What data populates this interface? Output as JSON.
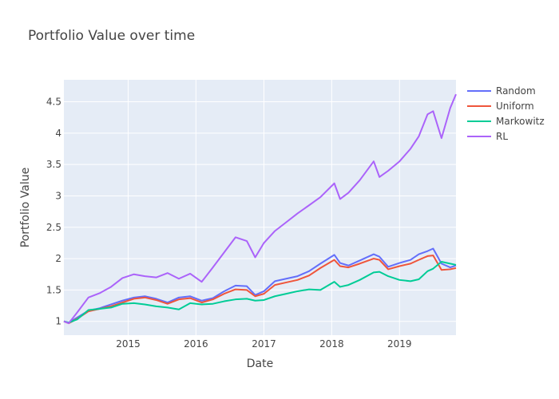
{
  "chart_data": {
    "type": "line",
    "title": "Portfolio Value over time",
    "xlabel": "Date",
    "ylabel": "Portfolio Value",
    "xlim": [
      "2014-01-20",
      "2019-11-01"
    ],
    "ylim": [
      0.78,
      4.85
    ],
    "x_ticks": [
      "2015",
      "2016",
      "2017",
      "2018",
      "2019"
    ],
    "y_ticks": [
      "1",
      "1.5",
      "2",
      "2.5",
      "3",
      "3.5",
      "4",
      "4.5"
    ],
    "grid": true,
    "legend_position": "top-right",
    "series": [
      {
        "name": "Random",
        "color": "#636efa",
        "points": [
          [
            "2014-01-20",
            1.0
          ],
          [
            "2014-02-15",
            0.98
          ],
          [
            "2014-04-01",
            1.06
          ],
          [
            "2014-06-01",
            1.17
          ],
          [
            "2014-08-01",
            1.21
          ],
          [
            "2014-10-01",
            1.27
          ],
          [
            "2014-12-01",
            1.33
          ],
          [
            "2015-02-01",
            1.38
          ],
          [
            "2015-04-01",
            1.4
          ],
          [
            "2015-06-01",
            1.36
          ],
          [
            "2015-08-01",
            1.3
          ],
          [
            "2015-10-01",
            1.38
          ],
          [
            "2015-12-01",
            1.4
          ],
          [
            "2016-02-01",
            1.33
          ],
          [
            "2016-04-01",
            1.37
          ],
          [
            "2016-06-01",
            1.48
          ],
          [
            "2016-08-01",
            1.57
          ],
          [
            "2016-10-01",
            1.56
          ],
          [
            "2016-11-15",
            1.42
          ],
          [
            "2017-01-01",
            1.48
          ],
          [
            "2017-03-01",
            1.64
          ],
          [
            "2017-05-01",
            1.68
          ],
          [
            "2017-07-01",
            1.72
          ],
          [
            "2017-09-01",
            1.8
          ],
          [
            "2017-11-01",
            1.92
          ],
          [
            "2018-01-15",
            2.06
          ],
          [
            "2018-02-15",
            1.93
          ],
          [
            "2018-04-01",
            1.89
          ],
          [
            "2018-06-01",
            1.97
          ],
          [
            "2018-08-15",
            2.07
          ],
          [
            "2018-09-15",
            2.03
          ],
          [
            "2018-11-01",
            1.87
          ],
          [
            "2019-01-01",
            1.93
          ],
          [
            "2019-03-01",
            1.98
          ],
          [
            "2019-04-15",
            2.07
          ],
          [
            "2019-06-01",
            2.12
          ],
          [
            "2019-07-01",
            2.16
          ],
          [
            "2019-08-15",
            1.92
          ],
          [
            "2019-10-01",
            1.86
          ],
          [
            "2019-11-01",
            1.89
          ]
        ]
      },
      {
        "name": "Uniform",
        "color": "#ef553b",
        "points": [
          [
            "2014-01-20",
            1.0
          ],
          [
            "2014-02-15",
            0.97
          ],
          [
            "2014-04-01",
            1.04
          ],
          [
            "2014-06-01",
            1.16
          ],
          [
            "2014-08-01",
            1.2
          ],
          [
            "2014-10-01",
            1.24
          ],
          [
            "2014-12-01",
            1.3
          ],
          [
            "2015-02-01",
            1.36
          ],
          [
            "2015-04-01",
            1.38
          ],
          [
            "2015-06-01",
            1.34
          ],
          [
            "2015-08-01",
            1.28
          ],
          [
            "2015-10-01",
            1.35
          ],
          [
            "2015-12-01",
            1.37
          ],
          [
            "2016-02-01",
            1.3
          ],
          [
            "2016-04-01",
            1.35
          ],
          [
            "2016-06-01",
            1.44
          ],
          [
            "2016-08-01",
            1.51
          ],
          [
            "2016-10-01",
            1.5
          ],
          [
            "2016-11-15",
            1.4
          ],
          [
            "2017-01-01",
            1.44
          ],
          [
            "2017-03-01",
            1.58
          ],
          [
            "2017-05-01",
            1.62
          ],
          [
            "2017-07-01",
            1.66
          ],
          [
            "2017-09-01",
            1.73
          ],
          [
            "2017-11-01",
            1.85
          ],
          [
            "2018-01-15",
            1.98
          ],
          [
            "2018-02-15",
            1.88
          ],
          [
            "2018-04-01",
            1.86
          ],
          [
            "2018-06-01",
            1.92
          ],
          [
            "2018-08-15",
            2.0
          ],
          [
            "2018-09-15",
            1.98
          ],
          [
            "2018-11-01",
            1.83
          ],
          [
            "2019-01-01",
            1.88
          ],
          [
            "2019-03-01",
            1.92
          ],
          [
            "2019-04-15",
            1.98
          ],
          [
            "2019-06-01",
            2.04
          ],
          [
            "2019-07-01",
            2.05
          ],
          [
            "2019-08-15",
            1.82
          ],
          [
            "2019-10-01",
            1.83
          ],
          [
            "2019-11-01",
            1.85
          ]
        ]
      },
      {
        "name": "Markowitz",
        "color": "#00cc96",
        "points": [
          [
            "2014-01-20",
            1.0
          ],
          [
            "2014-02-15",
            0.98
          ],
          [
            "2014-04-01",
            1.03
          ],
          [
            "2014-06-01",
            1.18
          ],
          [
            "2014-08-01",
            1.2
          ],
          [
            "2014-10-01",
            1.22
          ],
          [
            "2014-12-01",
            1.28
          ],
          [
            "2015-02-01",
            1.29
          ],
          [
            "2015-04-01",
            1.27
          ],
          [
            "2015-06-01",
            1.24
          ],
          [
            "2015-08-01",
            1.22
          ],
          [
            "2015-10-01",
            1.19
          ],
          [
            "2015-12-01",
            1.29
          ],
          [
            "2016-02-01",
            1.27
          ],
          [
            "2016-04-01",
            1.28
          ],
          [
            "2016-06-01",
            1.32
          ],
          [
            "2016-08-01",
            1.35
          ],
          [
            "2016-10-01",
            1.36
          ],
          [
            "2016-11-15",
            1.33
          ],
          [
            "2017-01-01",
            1.34
          ],
          [
            "2017-03-01",
            1.4
          ],
          [
            "2017-05-01",
            1.44
          ],
          [
            "2017-07-01",
            1.48
          ],
          [
            "2017-09-01",
            1.51
          ],
          [
            "2017-11-01",
            1.5
          ],
          [
            "2018-01-15",
            1.63
          ],
          [
            "2018-02-15",
            1.55
          ],
          [
            "2018-04-01",
            1.58
          ],
          [
            "2018-06-01",
            1.66
          ],
          [
            "2018-08-15",
            1.78
          ],
          [
            "2018-09-15",
            1.79
          ],
          [
            "2018-11-01",
            1.72
          ],
          [
            "2019-01-01",
            1.66
          ],
          [
            "2019-03-01",
            1.64
          ],
          [
            "2019-04-15",
            1.67
          ],
          [
            "2019-06-01",
            1.8
          ],
          [
            "2019-07-01",
            1.84
          ],
          [
            "2019-08-15",
            1.95
          ],
          [
            "2019-10-01",
            1.92
          ],
          [
            "2019-11-01",
            1.9
          ]
        ]
      },
      {
        "name": "RL",
        "color": "#ab63fa",
        "points": [
          [
            "2014-01-20",
            1.0
          ],
          [
            "2014-02-15",
            0.97
          ],
          [
            "2014-04-01",
            1.14
          ],
          [
            "2014-06-01",
            1.38
          ],
          [
            "2014-08-01",
            1.45
          ],
          [
            "2014-10-01",
            1.55
          ],
          [
            "2014-12-01",
            1.69
          ],
          [
            "2015-02-01",
            1.75
          ],
          [
            "2015-04-01",
            1.72
          ],
          [
            "2015-06-01",
            1.7
          ],
          [
            "2015-08-01",
            1.77
          ],
          [
            "2015-10-01",
            1.68
          ],
          [
            "2015-12-01",
            1.76
          ],
          [
            "2016-02-01",
            1.63
          ],
          [
            "2016-04-01",
            1.86
          ],
          [
            "2016-06-01",
            2.1
          ],
          [
            "2016-08-01",
            2.34
          ],
          [
            "2016-10-01",
            2.28
          ],
          [
            "2016-11-15",
            2.02
          ],
          [
            "2017-01-01",
            2.25
          ],
          [
            "2017-03-01",
            2.44
          ],
          [
            "2017-05-01",
            2.58
          ],
          [
            "2017-07-01",
            2.72
          ],
          [
            "2017-09-01",
            2.85
          ],
          [
            "2017-11-01",
            2.98
          ],
          [
            "2018-01-15",
            3.2
          ],
          [
            "2018-02-15",
            2.95
          ],
          [
            "2018-04-01",
            3.05
          ],
          [
            "2018-06-01",
            3.25
          ],
          [
            "2018-08-15",
            3.55
          ],
          [
            "2018-09-15",
            3.3
          ],
          [
            "2018-11-01",
            3.4
          ],
          [
            "2019-01-01",
            3.55
          ],
          [
            "2019-03-01",
            3.75
          ],
          [
            "2019-04-15",
            3.95
          ],
          [
            "2019-06-01",
            4.3
          ],
          [
            "2019-07-01",
            4.35
          ],
          [
            "2019-08-15",
            3.92
          ],
          [
            "2019-10-01",
            4.4
          ],
          [
            "2019-11-01",
            4.62
          ]
        ]
      }
    ]
  }
}
